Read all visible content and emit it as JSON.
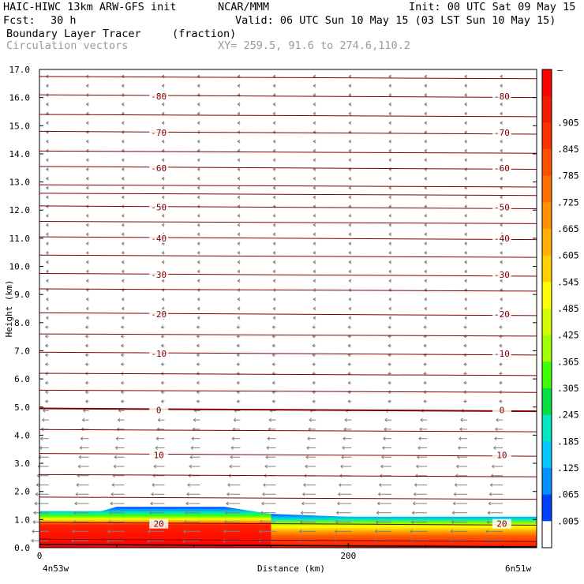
{
  "header": {
    "title": "HAIC-HIWC 13km ARW-GFS init",
    "org": "NCAR/MMM",
    "init": "Init: 00 UTC Sat 09 May 15",
    "fcst_label": "Fcst:",
    "fcst_value": "30 h",
    "valid": "Valid: 06 UTC Sun 10 May 15 (03 LST Sun 10 May 15)",
    "field_name": "Boundary Layer Tracer",
    "field_units": "(fraction)",
    "overlay_name": "Circulation vectors",
    "xy": "XY= 259.5, 91.6 to 274.6,110.2"
  },
  "chart_data": {
    "type": "heatmap",
    "ylabel": "Height (km)",
    "xlabel": "Distance (km)",
    "x_start_label": "4n53w",
    "x_end_label": "6n51w",
    "xlim": [
      0,
      322
    ],
    "ylim": [
      0.0,
      17.0
    ],
    "y_ticks": [
      "0.0",
      "1.0",
      "2.0",
      "3.0",
      "4.0",
      "5.0",
      "6.0",
      "7.0",
      "8.0",
      "9.0",
      "10.0",
      "11.0",
      "12.0",
      "13.0",
      "14.0",
      "15.0",
      "16.0",
      "17.0"
    ],
    "x_ticks": [
      {
        "value": 0,
        "label": "0"
      },
      {
        "value": 200,
        "label": "200"
      }
    ],
    "colorbar": {
      "labels": [
        "–",
        ".905",
        ".845",
        ".785",
        ".725",
        ".665",
        ".605",
        ".545",
        ".485",
        ".425",
        ".365",
        ".305",
        ".245",
        ".185",
        ".125",
        ".065",
        ".005"
      ],
      "colors": [
        "#ff0000",
        "#f31a00",
        "#ff3000",
        "#ff5000",
        "#ff7000",
        "#ff9000",
        "#ffb000",
        "#ffd000",
        "#ffff00",
        "#d2ff00",
        "#a0ff00",
        "#40ff00",
        "#00e040",
        "#00e8c0",
        "#00c8ff",
        "#0090ff",
        "#0040ff",
        "#ffffff"
      ]
    },
    "tracer_top_km": [
      {
        "x": 0,
        "top": 1.3
      },
      {
        "x": 40,
        "top": 1.3
      },
      {
        "x": 50,
        "top": 1.45
      },
      {
        "x": 120,
        "top": 1.45
      },
      {
        "x": 150,
        "top": 1.2
      },
      {
        "x": 200,
        "top": 1.1
      },
      {
        "x": 322,
        "top": 1.1
      }
    ],
    "temperature_contours": [
      {
        "label": "-80",
        "height_km": 16.05
      },
      {
        "label": "-70",
        "height_km": 14.75
      },
      {
        "label": "-60",
        "height_km": 13.5
      },
      {
        "label": "-50",
        "height_km": 12.1
      },
      {
        "label": "-40",
        "height_km": 11.0
      },
      {
        "label": "-30",
        "height_km": 9.7
      },
      {
        "label": "-20",
        "height_km": 8.3
      },
      {
        "label": "-10",
        "height_km": 6.9
      },
      {
        "label": "0",
        "height_km": 4.9
      },
      {
        "label": "10",
        "height_km": 3.3
      },
      {
        "label": "20",
        "height_km": 0.85
      }
    ],
    "extra_contour_heights_km": [
      16.75,
      15.4,
      14.1,
      12.9,
      12.6,
      11.6,
      10.4,
      9.2,
      7.6,
      6.2,
      5.6,
      4.2,
      2.6,
      1.8,
      0.3
    ]
  }
}
